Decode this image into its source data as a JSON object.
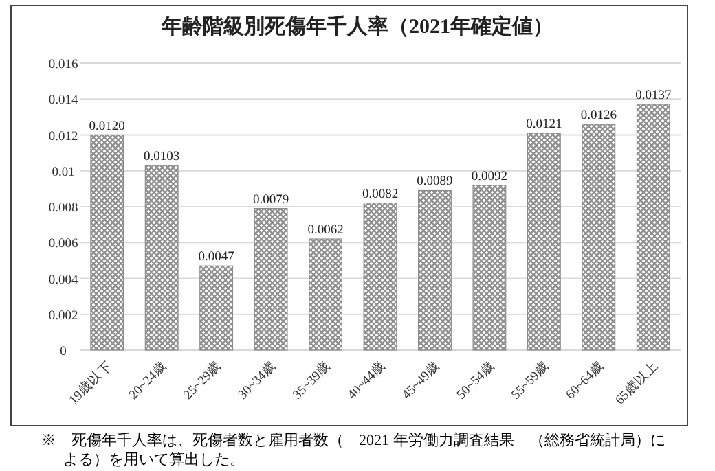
{
  "chart_data": {
    "type": "bar",
    "title": "年齢階級別死傷年千人率（2021年確定値）",
    "categories": [
      "19歳以下",
      "20~24歳",
      "25~29歳",
      "30~34歳",
      "35~39歳",
      "40~44歳",
      "45~49歳",
      "50~54歳",
      "55~59歳",
      "60~64歳",
      "65歳以上"
    ],
    "values": [
      0.012,
      0.0103,
      0.0047,
      0.0079,
      0.0062,
      0.0082,
      0.0089,
      0.0092,
      0.0121,
      0.0126,
      0.0137
    ],
    "value_labels": [
      "0.0120",
      "0.0103",
      "0.0047",
      "0.0079",
      "0.0062",
      "0.0082",
      "0.0089",
      "0.0092",
      "0.0121",
      "0.0126",
      "0.0137"
    ],
    "color": "#8c8c8c",
    "ylim": [
      0,
      0.016
    ],
    "yticks": [
      0,
      {
        "value": 0.002,
        "label": "0.002"
      },
      {
        "value": 0.004,
        "label": "0.004"
      },
      {
        "value": 0.006,
        "label": "0.006"
      },
      {
        "value": 0.008,
        "label": "0.008"
      },
      {
        "value": 0.01,
        "label": "0.01"
      },
      {
        "value": 0.012,
        "label": "0.012"
      },
      {
        "value": 0.014,
        "label": "0.014"
      },
      {
        "value": 0.016,
        "label": "0.016"
      }
    ],
    "grid": "y",
    "annotations": [
      "※　死傷年千人率は、死傷者数と雇用者数（「2021 年労働力調査結果」（総務省統計局）による）を用いて算出した。"
    ]
  }
}
